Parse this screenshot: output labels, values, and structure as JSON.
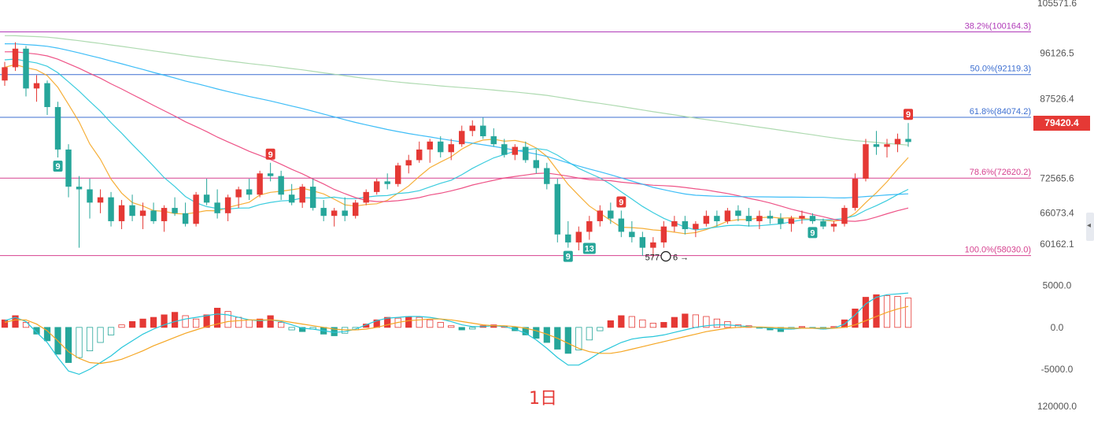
{
  "period_label": "1日",
  "last_price": "79420.4",
  "price_axis_ticks": [
    "105571.6",
    "96126.5",
    "87526.4",
    "72565.6",
    "66073.4",
    "60162.1"
  ],
  "macd_axis_ticks": [
    "5000.0",
    "0.0",
    "-5000.0",
    "120000.0"
  ],
  "low_marker": {
    "text_left": "577",
    "text_right": "6",
    "arrow": "→"
  },
  "fib_levels": [
    {
      "label": "38.2%(100164.3)",
      "value": 100164.3,
      "color": "#b03ab8"
    },
    {
      "label": "50.0%(92119.3)",
      "value": 92119.3,
      "color": "#3d6fd1"
    },
    {
      "label": "61.8%(84074.2)",
      "value": 84074.2,
      "color": "#3d6fd1"
    },
    {
      "label": "78.6%(72620.2)",
      "value": 72620.2,
      "color": "#d6418f"
    },
    {
      "label": "100.0%(58030.0)",
      "value": 58030.0,
      "color": "#d6418f"
    }
  ],
  "td_markers": [
    {
      "text": "9",
      "color": "#26a69a",
      "index": 5
    },
    {
      "text": "9",
      "color": "#e53935",
      "index": 25
    },
    {
      "text": "9",
      "color": "#26a69a",
      "index": 53
    },
    {
      "text": "13",
      "color": "#26a69a",
      "index": 55
    },
    {
      "text": "9",
      "color": "#e53935",
      "index": 58
    },
    {
      "text": "9",
      "color": "#26a69a",
      "index": 76
    },
    {
      "text": "9",
      "color": "#e53935",
      "index": 85
    }
  ],
  "colors": {
    "up": "#e53935",
    "down": "#26a69a",
    "bg": "#ffffff",
    "ma_colors": [
      "#f5a623",
      "#26c6da",
      "#ec407a",
      "#29b6f6",
      "#a5d6a7"
    ],
    "macd_dif": "#26c6da",
    "macd_dea": "#f5a623"
  },
  "chart_data": {
    "type": "candlestick",
    "interval": "1日",
    "price_ylim": [
      55000,
      105571.6
    ],
    "candles": [
      [
        91000,
        94500,
        90000,
        93500
      ],
      [
        93500,
        98200,
        92800,
        97000
      ],
      [
        97000,
        97500,
        88000,
        89500
      ],
      [
        89500,
        92000,
        87000,
        90500
      ],
      [
        90500,
        91000,
        84500,
        86000
      ],
      [
        86000,
        87000,
        76500,
        78000
      ],
      [
        78000,
        79000,
        69000,
        71000
      ],
      [
        71000,
        73000,
        59500,
        70500
      ],
      [
        70500,
        72500,
        65000,
        68000
      ],
      [
        68000,
        70500,
        66000,
        69000
      ],
      [
        69000,
        70000,
        63500,
        64500
      ],
      [
        64500,
        68500,
        63000,
        67500
      ],
      [
        67500,
        69500,
        64500,
        65500
      ],
      [
        65500,
        68000,
        63000,
        66500
      ],
      [
        66500,
        68000,
        64000,
        64500
      ],
      [
        64500,
        67500,
        62500,
        67000
      ],
      [
        67000,
        69000,
        65500,
        66000
      ],
      [
        66000,
        68000,
        63500,
        64000
      ],
      [
        64000,
        70000,
        63500,
        69500
      ],
      [
        69500,
        72500,
        67500,
        68000
      ],
      [
        68000,
        70500,
        65000,
        66000
      ],
      [
        66000,
        69500,
        64500,
        69000
      ],
      [
        69000,
        71000,
        67000,
        70500
      ],
      [
        70500,
        72500,
        68500,
        69500
      ],
      [
        69500,
        74000,
        69000,
        73500
      ],
      [
        73500,
        75500,
        72000,
        73000
      ],
      [
        73000,
        74000,
        68500,
        69500
      ],
      [
        69500,
        71500,
        67500,
        68000
      ],
      [
        68000,
        71500,
        67000,
        71000
      ],
      [
        71000,
        72500,
        66500,
        67000
      ],
      [
        67000,
        68500,
        64500,
        65500
      ],
      [
        65500,
        67000,
        63500,
        66500
      ],
      [
        66500,
        69000,
        64500,
        65500
      ],
      [
        65500,
        68500,
        65000,
        68000
      ],
      [
        68000,
        70500,
        67500,
        70000
      ],
      [
        70000,
        72500,
        69500,
        72000
      ],
      [
        72000,
        73500,
        70500,
        71500
      ],
      [
        71500,
        75500,
        71000,
        75000
      ],
      [
        75000,
        77000,
        73500,
        76000
      ],
      [
        76000,
        79500,
        75500,
        78000
      ],
      [
        78000,
        80000,
        75500,
        79500
      ],
      [
        79500,
        80500,
        76500,
        77500
      ],
      [
        77500,
        80000,
        76000,
        79000
      ],
      [
        79000,
        82500,
        78500,
        81500
      ],
      [
        81500,
        83500,
        80500,
        82500
      ],
      [
        82500,
        84000,
        80000,
        80500
      ],
      [
        80500,
        82000,
        78500,
        79000
      ],
      [
        79000,
        80000,
        76500,
        77000
      ],
      [
        77000,
        79000,
        76000,
        78500
      ],
      [
        78500,
        79500,
        75500,
        76000
      ],
      [
        76000,
        78000,
        73500,
        74500
      ],
      [
        74500,
        75500,
        70500,
        71500
      ],
      [
        71500,
        72500,
        60500,
        62000
      ],
      [
        62000,
        64500,
        59500,
        60500
      ],
      [
        60500,
        63500,
        59000,
        62500
      ],
      [
        62500,
        65500,
        61000,
        64500
      ],
      [
        64500,
        67500,
        63500,
        66500
      ],
      [
        66500,
        68000,
        64000,
        65000
      ],
      [
        65000,
        66500,
        61500,
        62500
      ],
      [
        62500,
        64500,
        60500,
        61500
      ],
      [
        61500,
        62500,
        58000,
        59500
      ],
      [
        59500,
        61500,
        57700,
        60500
      ],
      [
        60500,
        64500,
        59500,
        63500
      ],
      [
        63500,
        65500,
        62500,
        64500
      ],
      [
        64500,
        65500,
        62000,
        63000
      ],
      [
        63000,
        64500,
        61500,
        64000
      ],
      [
        64000,
        66500,
        63500,
        65500
      ],
      [
        65500,
        66500,
        63500,
        64500
      ],
      [
        64500,
        67000,
        64000,
        66500
      ],
      [
        66500,
        67500,
        64500,
        65500
      ],
      [
        65500,
        67000,
        63500,
        64500
      ],
      [
        64500,
        66500,
        63000,
        65500
      ],
      [
        65500,
        66500,
        64000,
        65000
      ],
      [
        65000,
        66000,
        63000,
        64000
      ],
      [
        64000,
        65500,
        62500,
        65000
      ],
      [
        65000,
        66500,
        64000,
        65500
      ],
      [
        65500,
        66000,
        64000,
        64500
      ],
      [
        64500,
        65000,
        63000,
        63500
      ],
      [
        63500,
        64500,
        62500,
        64000
      ],
      [
        64000,
        67500,
        63500,
        67000
      ],
      [
        67000,
        73500,
        66500,
        72500
      ],
      [
        72500,
        80000,
        72000,
        79000
      ],
      [
        79000,
        81500,
        77000,
        78500
      ],
      [
        78500,
        80000,
        76500,
        79000
      ],
      [
        79000,
        81000,
        77500,
        80000
      ],
      [
        80000,
        83000,
        78500,
        79420.4
      ]
    ],
    "macd": {
      "ylim": [
        -6500,
        6000
      ],
      "hist": [
        900,
        1400,
        600,
        -800,
        -1600,
        -3200,
        -4200,
        -3600,
        -2800,
        -1800,
        -900,
        300,
        700,
        1000,
        1200,
        1500,
        1800,
        1400,
        1000,
        1500,
        2300,
        1900,
        1200,
        900,
        1000,
        1400,
        600,
        -300,
        -500,
        -200,
        -800,
        -1000,
        -700,
        -300,
        400,
        900,
        1200,
        1100,
        1300,
        1200,
        900,
        600,
        200,
        -300,
        -200,
        200,
        300,
        100,
        -400,
        -900,
        -1300,
        -1800,
        -2600,
        -3100,
        -2700,
        -1500,
        -400,
        800,
        1400,
        1300,
        900,
        500,
        600,
        1200,
        1600,
        1500,
        1300,
        1000,
        700,
        300,
        200,
        -100,
        -300,
        -500,
        -200,
        100,
        -100,
        -200,
        100,
        900,
        2200,
        3600,
        3900,
        3800,
        3700,
        3500
      ],
      "dif": [
        800,
        1200,
        700,
        -600,
        -1800,
        -3600,
        -5200,
        -5600,
        -5000,
        -4200,
        -3400,
        -2400,
        -1600,
        -800,
        -200,
        300,
        700,
        1000,
        1200,
        1400,
        1600,
        1500,
        1200,
        900,
        800,
        900,
        700,
        300,
        -100,
        -200,
        -400,
        -600,
        -500,
        -200,
        300,
        800,
        1100,
        1200,
        1300,
        1300,
        1200,
        1000,
        700,
        300,
        100,
        100,
        200,
        100,
        -200,
        -700,
        -1500,
        -2500,
        -3600,
        -4500,
        -4500,
        -3800,
        -3000,
        -2400,
        -1800,
        -1400,
        -1200,
        -1100,
        -900,
        -600,
        -300,
        0,
        200,
        300,
        300,
        200,
        100,
        0,
        -100,
        -200,
        -200,
        -100,
        -100,
        -200,
        -100,
        400,
        1500,
        2800,
        3600,
        3900,
        4000,
        4100
      ],
      "dea": [
        600,
        900,
        900,
        400,
        -400,
        -1600,
        -2900,
        -3700,
        -4200,
        -4300,
        -4100,
        -3800,
        -3300,
        -2800,
        -2200,
        -1700,
        -1200,
        -700,
        -300,
        100,
        400,
        700,
        800,
        900,
        900,
        900,
        800,
        600,
        400,
        200,
        0,
        -200,
        -300,
        -300,
        -200,
        0,
        300,
        600,
        800,
        900,
        1000,
        1000,
        900,
        700,
        500,
        300,
        200,
        200,
        100,
        -100,
        -400,
        -800,
        -1300,
        -1900,
        -2500,
        -2900,
        -3100,
        -3100,
        -2900,
        -2600,
        -2300,
        -2000,
        -1700,
        -1400,
        -1100,
        -800,
        -500,
        -300,
        -100,
        0,
        50,
        50,
        0,
        -50,
        -100,
        -100,
        -100,
        -100,
        -100,
        0,
        300,
        800,
        1300,
        1800,
        2200,
        2500
      ]
    }
  }
}
